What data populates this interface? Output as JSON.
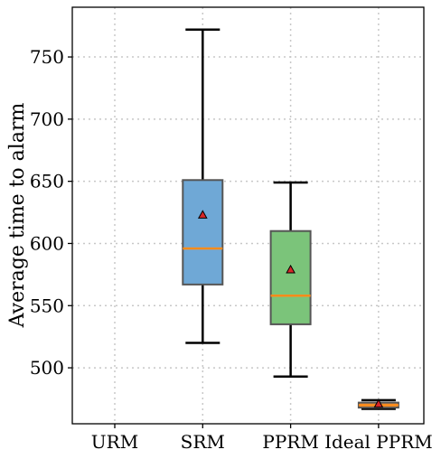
{
  "chart_data": {
    "type": "box",
    "title": "",
    "xlabel": "",
    "ylabel": "Average time to alarm",
    "ylim": [
      455,
      790
    ],
    "yticks": [
      500,
      550,
      600,
      650,
      700,
      750
    ],
    "grid": true,
    "categories": [
      "URM",
      "SRM",
      "PPRM",
      "Ideal PPRM"
    ],
    "boxes": [
      null,
      {
        "whisker_low": 520,
        "q1": 567,
        "median": 596,
        "q3": 651,
        "whisker_high": 772,
        "mean": 623,
        "color": "#6fa8d6",
        "edge": "#555555"
      },
      {
        "whisker_low": 493,
        "q1": 535,
        "median": 558,
        "q3": 610,
        "whisker_high": 649,
        "mean": 579,
        "color": "#7bc47a",
        "edge": "#555555"
      },
      {
        "whisker_low": 467,
        "q1": 468,
        "median": 470,
        "q3": 472,
        "whisker_high": 474,
        "mean": 471,
        "color": "#e09040",
        "edge": "#555555"
      }
    ],
    "median_color": "#ff8c1a",
    "mean_marker": {
      "shape": "triangle",
      "fill": "#d62728",
      "edge": "#000000"
    }
  }
}
